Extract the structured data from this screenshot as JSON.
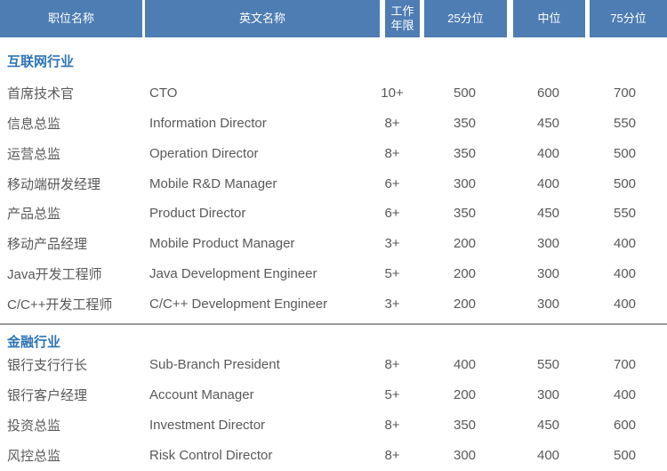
{
  "table": {
    "headers": {
      "position": "职位名称",
      "english": "英文名称",
      "years": "工作年限",
      "p25": "25分位",
      "median": "中位",
      "p75": "75分位"
    }
  },
  "sections": [
    {
      "title": "互联网行业",
      "rows": [
        {
          "position": "首席技术官",
          "english": "CTO",
          "years": "10+",
          "p25": "500",
          "median": "600",
          "p75": "700"
        },
        {
          "position": "信息总监",
          "english": "Information Director",
          "years": "8+",
          "p25": "350",
          "median": "450",
          "p75": "550"
        },
        {
          "position": "运营总监",
          "english": "Operation Director",
          "years": "8+",
          "p25": "350",
          "median": "400",
          "p75": "500"
        },
        {
          "position": "移动端研发经理",
          "english": "Mobile R&D Manager",
          "years": "6+",
          "p25": "300",
          "median": "400",
          "p75": "500"
        },
        {
          "position": "产品总监",
          "english": "Product Director",
          "years": "6+",
          "p25": "350",
          "median": "450",
          "p75": "550"
        },
        {
          "position": "移动产品经理",
          "english": "Mobile Product Manager",
          "years": "3+",
          "p25": "200",
          "median": "300",
          "p75": "400"
        },
        {
          "position": "Java开发工程师",
          "english": "Java Development Engineer",
          "years": "5+",
          "p25": "200",
          "median": "300",
          "p75": "400"
        },
        {
          "position": "C/C++开发工程师",
          "english": "C/C++ Development Engineer",
          "years": "3+",
          "p25": "200",
          "median": "300",
          "p75": "400"
        }
      ]
    },
    {
      "title": "金融行业",
      "rows": [
        {
          "position": "银行支行行长",
          "english": "Sub-Branch President",
          "years": "8+",
          "p25": "400",
          "median": "550",
          "p75": "700"
        },
        {
          "position": "银行客户经理",
          "english": "Account Manager",
          "years": "5+",
          "p25": "200",
          "median": "300",
          "p75": "400"
        },
        {
          "position": "投资总监",
          "english": "Investment Director",
          "years": "8+",
          "p25": "350",
          "median": "450",
          "p75": "600"
        },
        {
          "position": "风控总监",
          "english": "Risk Control Director",
          "years": "8+",
          "p25": "300",
          "median": "400",
          "p75": "500"
        }
      ]
    }
  ],
  "colors": {
    "header_bg": "#4e7db3",
    "header_text": "#ffffff",
    "section_title": "#2e74b5",
    "body_text": "#595959",
    "divider": "#9b9b9b"
  }
}
